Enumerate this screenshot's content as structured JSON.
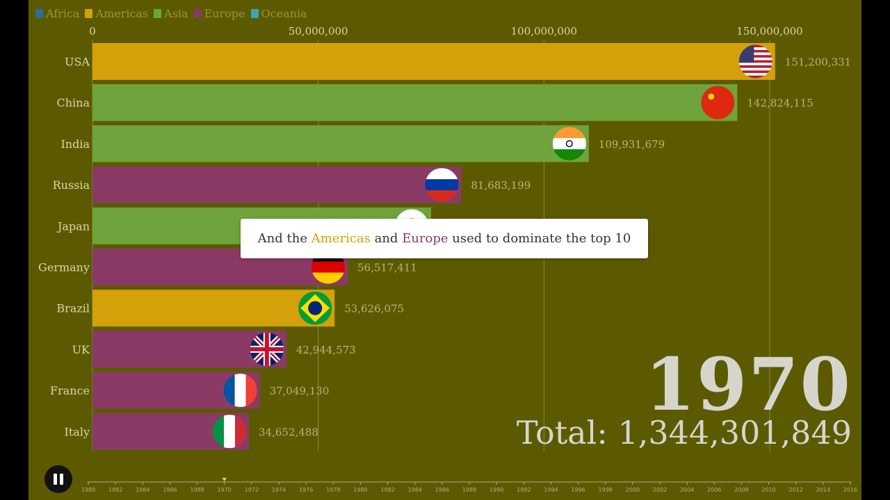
{
  "legend": [
    {
      "name": "Africa",
      "color": "#2e6c9e"
    },
    {
      "name": "Americas",
      "color": "#d4a10a"
    },
    {
      "name": "Asia",
      "color": "#6fa33b"
    },
    {
      "name": "Europe",
      "color": "#8b3a66"
    },
    {
      "name": "Oceania",
      "color": "#3aa6b5"
    }
  ],
  "caption": {
    "part1": "And the ",
    "highlight1": "Americas",
    "part2": " and ",
    "highlight2": "Europe",
    "part3": " used to dominate the top 10"
  },
  "year": "1970",
  "total": {
    "label": "Total:",
    "value": "1,344,301,849"
  },
  "timeline": {
    "ticks": [
      "1980",
      "1982",
      "1984",
      "1986",
      "1988",
      "1970",
      "1972",
      "1974",
      "1976",
      "1978",
      "1980",
      "1982",
      "1984",
      "1986",
      "1988",
      "1990",
      "1992",
      "1994",
      "1996",
      "1998",
      "2000",
      "2002",
      "2004",
      "2006",
      "2008",
      "2010",
      "2012",
      "2014",
      "2016"
    ]
  },
  "chart_data": {
    "type": "bar",
    "orientation": "horizontal",
    "title": "",
    "xlim": [
      0,
      150000000
    ],
    "x_ticks": [
      0,
      50000000,
      100000000,
      150000000
    ],
    "x_tick_labels": [
      "0",
      "50,000,000",
      "100,000,000",
      "150,000,000"
    ],
    "legend_placement": "top-left",
    "grid": true,
    "categories": [
      "USA",
      "China",
      "India",
      "Russia",
      "Japan",
      "Germany",
      "Brazil",
      "UK",
      "France",
      "Italy"
    ],
    "values": [
      151200331,
      142824115,
      109931679,
      81683199,
      75000000,
      56517411,
      53626075,
      42944573,
      37049130,
      34652488
    ],
    "value_labels": [
      "151,200,331",
      "142,824,115",
      "109,931,679",
      "81,683,199",
      "",
      "56,517,411",
      "53,626,075",
      "42,944,573",
      "37,049,130",
      "34,652,488"
    ],
    "regions": [
      "Americas",
      "Asia",
      "Asia",
      "Europe",
      "Asia",
      "Europe",
      "Americas",
      "Europe",
      "Europe",
      "Europe"
    ],
    "flags": [
      "usa-flag",
      "china-flag",
      "india-flag",
      "russia-flag",
      "japan-flag",
      "germany-flag",
      "brazil-flag",
      "uk-flag",
      "france-flag",
      "italy-flag"
    ]
  }
}
